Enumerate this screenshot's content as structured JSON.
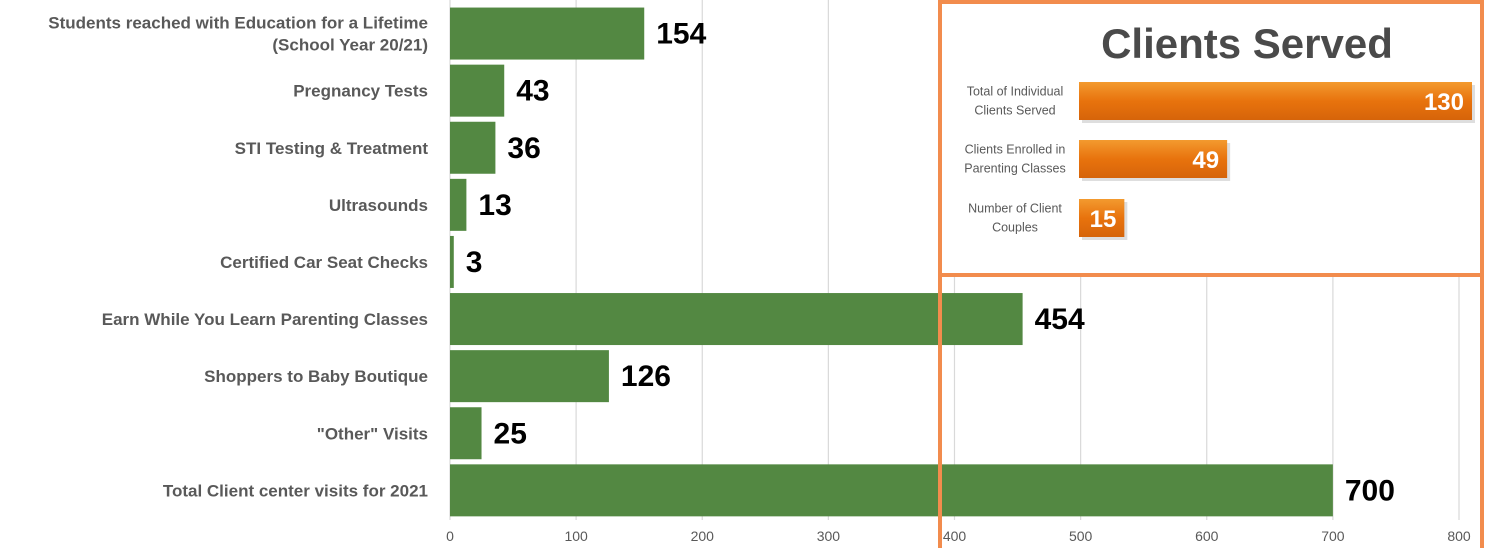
{
  "chart_data": [
    {
      "type": "bar",
      "orientation": "horizontal",
      "categories": [
        [
          "Students reached with Education for a Lifetime",
          "(School Year 20/21)"
        ],
        [
          "Pregnancy Tests"
        ],
        [
          "STI Testing & Treatment"
        ],
        [
          "Ultrasounds"
        ],
        [
          "Certified Car Seat Checks"
        ],
        [
          "Earn While You Learn Parenting Classes"
        ],
        [
          "Shoppers to Baby Boutique"
        ],
        [
          "\"Other\" Visits"
        ],
        [
          "Total Client center visits for 2021"
        ]
      ],
      "values": [
        154,
        43,
        36,
        13,
        3,
        454,
        126,
        25,
        700
      ],
      "xlim": [
        0,
        800
      ],
      "xticks": [
        "0",
        "100",
        "200",
        "300",
        "400",
        "500",
        "600",
        "700",
        "800"
      ],
      "bar_color": "#538842",
      "grid": true,
      "title": "",
      "xlabel": "",
      "ylabel": ""
    },
    {
      "type": "bar",
      "orientation": "horizontal",
      "title": "Clients Served",
      "categories": [
        [
          "Total of Individual",
          "Clients Served"
        ],
        [
          "Clients Enrolled in",
          "Parenting Classes"
        ],
        [
          "Number of Client",
          "Couples"
        ]
      ],
      "values": [
        130,
        49,
        15
      ],
      "xlim": [
        0,
        130
      ],
      "bar_color": "#e8730d",
      "border_color": "#f28c4d",
      "grid": false
    }
  ]
}
